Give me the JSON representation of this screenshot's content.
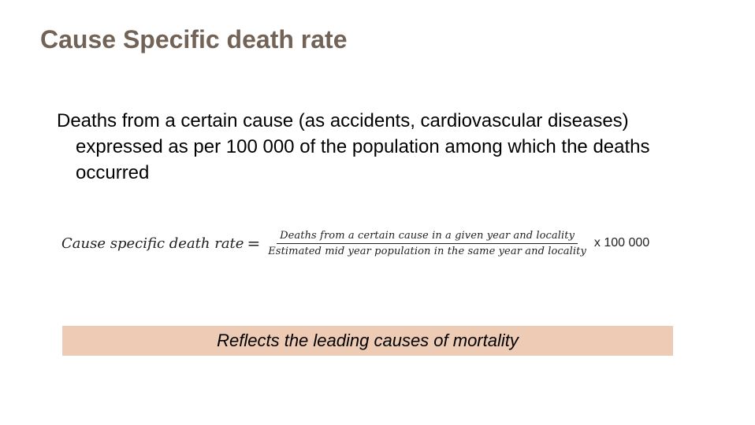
{
  "slide": {
    "title": "Cause Specific death rate",
    "definition": "Deaths from a certain cause (as accidents, cardiovascular diseases) expressed as per 100 000 of the population among which the deaths occurred"
  },
  "formula": {
    "lhs": "Cause specific death rate",
    "equals": "=",
    "numerator": "Deaths from a certain cause in a given year and locality",
    "denominator": "Estimated mid year population  in the same year and locality",
    "multiplier": "x 100 000"
  },
  "banner": {
    "text": "Reflects the leading causes of mortality",
    "color": "#edcbb5"
  },
  "colors": {
    "title": "#736357"
  }
}
